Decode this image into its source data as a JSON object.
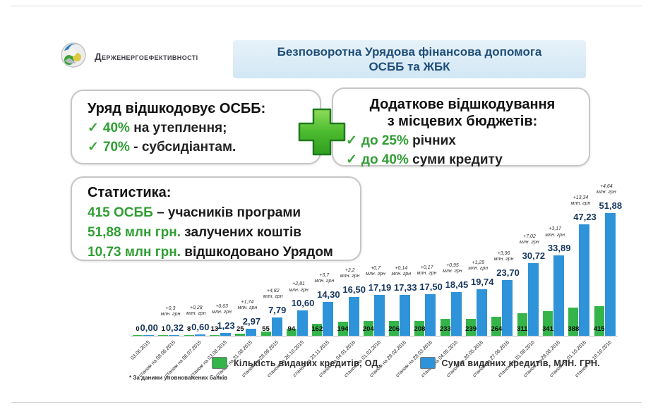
{
  "logo": {
    "text": "Держенергоефективності"
  },
  "title": {
    "line1": "Безповоротна Урядова фінансова допомога",
    "line2": "ОСББ та ЖБК"
  },
  "left_box": {
    "heading": "Уряд відшкодовує ОСББ:",
    "items": [
      {
        "check": "✓",
        "highlight": "40%",
        "rest": " на утеплення;"
      },
      {
        "check": "✓",
        "highlight": "70%",
        "rest": " - субсидіантам."
      }
    ]
  },
  "right_box": {
    "heading_line1": "Додаткове відшкодування",
    "heading_line2": "з місцевих бюджетів:",
    "items": [
      {
        "check": "✓",
        "highlight": "до 25%",
        "rest": " річних"
      },
      {
        "check": "✓",
        "highlight": "до 40%",
        "rest": " суми кредиту"
      }
    ]
  },
  "stats_box": {
    "heading": "Статистика:",
    "items": [
      {
        "highlight": "415 ОСББ",
        "rest": " – учасників програми"
      },
      {
        "highlight": "51,88 млн грн.",
        "rest": " залучених коштів"
      },
      {
        "highlight": "10,73 млн грн.",
        "rest": " відшкодовано Урядом"
      }
    ]
  },
  "footnote": "* За даними уповноважених банків",
  "colors": {
    "green_bar": "#35b44a",
    "blue_bar": "#2e93d8",
    "value_label": "#17375e",
    "highlight_green": "#2f9e33",
    "title_navy": "#1f4e79"
  },
  "chart_data": {
    "type": "bar",
    "title": "",
    "xlabel": "",
    "ylabel": "",
    "grid": false,
    "legend_position": "bottom",
    "categories": [
      "03.06.2015",
      "станом на 08.06.2015",
      "станом на 06.07.2015",
      "станом на 03.08.2015",
      "станом на 31.08.2015",
      "станом на 28.09.2015",
      "станом на 26.10.2015",
      "станом на 23.11.2015",
      "станом на 04.01.2016",
      "станом на 01.02.2016",
      "станом на 29.02.2016",
      "станом на 28.03.2016",
      "станом на 04.05.2016",
      "станом на 30.05.2016",
      "станом на 27.06.2016",
      "станом на 01.08.2016",
      "станом на 29.08.2016",
      "станом на 01.10.2016",
      "станом на 10.10.2016"
    ],
    "series": [
      {
        "name": "Кількість виданих  кредитів, ОД.",
        "color": "#35b44a",
        "values": [
          0,
          1,
          8,
          13,
          25,
          55,
          94,
          162,
          194,
          204,
          206,
          208,
          233,
          239,
          264,
          311,
          341,
          388,
          415
        ]
      },
      {
        "name": "Сума виданих  кредитів, МЛН. ГРН.",
        "color": "#2e93d8",
        "values": [
          0.0,
          0.32,
          0.6,
          1.23,
          2.97,
          7.79,
          10.6,
          14.3,
          16.5,
          17.19,
          17.33,
          17.5,
          18.45,
          19.74,
          23.7,
          30.72,
          33.89,
          47.23,
          51.88
        ]
      }
    ],
    "value_labels": [
      "0,00",
      "0,32",
      "0,60",
      "1,23",
      "2,97",
      "7,79",
      "10,60",
      "14,30",
      "16,50",
      "17,19",
      "17,33",
      "17,50",
      "18,45",
      "19,74",
      "23,70",
      "30,72",
      "33,89",
      "47,23",
      "51,88"
    ],
    "delta_annotations": [
      null,
      "+0,3",
      "+0,28",
      "+0,63",
      "+1,74",
      "+4,82",
      "+2,81",
      "+3,7",
      "+2,2",
      "+0,7",
      "+0,14",
      "+0,17",
      "+0,95",
      "+1,29",
      "+3,96",
      "+7,02",
      "+3,17",
      "+13,34",
      "+4,64"
    ],
    "delta_unit": "млн. грн",
    "ylim": [
      0,
      55
    ]
  }
}
